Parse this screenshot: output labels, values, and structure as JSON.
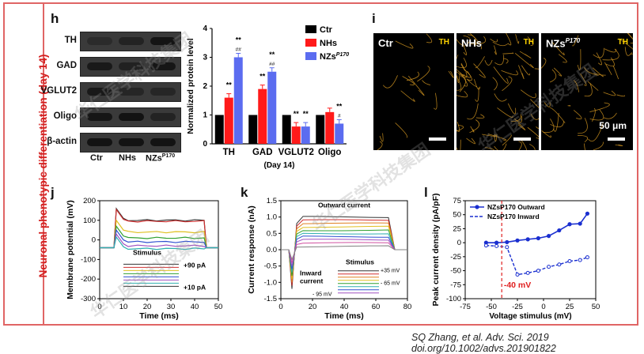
{
  "sidebar_label": "Neuronal phenotypic differentiation (day 14)",
  "citation": "SQ Zhang, et al. Adv. Sci. 2019 doi.org/10.1002/advs.201901822",
  "watermark_text": "华仁医学科技集团",
  "panel_h": {
    "letter": "h",
    "blot_rows": [
      "TH",
      "GAD",
      "VGLUT2",
      "Oligo",
      "β-actin"
    ],
    "lanes": [
      "Ctr",
      "NHs",
      "NZs"
    ],
    "lane_superscript": "P170",
    "chart_data": {
      "type": "bar",
      "categories": [
        "TH",
        "GAD",
        "VGLUT2",
        "Oligo"
      ],
      "ylabel": "Normalized protein level",
      "xlabel": "(Day 14)",
      "ylim": [
        0,
        4
      ],
      "yticks": [
        0,
        1,
        2,
        3,
        4
      ],
      "legend": [
        "Ctr",
        "NHs",
        "NZsP170"
      ],
      "legend_placement": "top-right",
      "colors": {
        "Ctr": "#000000",
        "NHs": "#ff1a1a",
        "NZs": "#5b6cf0"
      },
      "series": [
        {
          "name": "Ctr",
          "values": [
            1.0,
            1.0,
            1.0,
            1.0
          ]
        },
        {
          "name": "NHs",
          "values": [
            1.6,
            1.9,
            0.6,
            1.1
          ]
        },
        {
          "name": "NZsP170",
          "values": [
            3.0,
            2.5,
            0.6,
            0.7
          ]
        }
      ],
      "annotations": [
        {
          "cat": 0,
          "s": 1,
          "text": "**"
        },
        {
          "cat": 0,
          "s": 2,
          "text": "**",
          "sub": "##"
        },
        {
          "cat": 1,
          "s": 1,
          "text": "**"
        },
        {
          "cat": 1,
          "s": 2,
          "text": "**",
          "sub": "##"
        },
        {
          "cat": 2,
          "s": 1,
          "text": "**"
        },
        {
          "cat": 2,
          "s": 2,
          "text": "**"
        },
        {
          "cat": 3,
          "s": 2,
          "text": "**",
          "sub": "#"
        }
      ]
    }
  },
  "panel_i": {
    "letter": "i",
    "titles": [
      "Ctr",
      "NHs",
      "NZs"
    ],
    "title_superscript": "P170",
    "channel": "TH",
    "scale_label": "50 μm"
  },
  "panel_j": {
    "letter": "j",
    "chart_data": {
      "type": "line",
      "xlabel": "Time (ms)",
      "ylabel": "Membrane potential (mV)",
      "xlim": [
        0,
        50
      ],
      "ylim": [
        -300,
        200
      ],
      "xticks": [
        0,
        10,
        20,
        30,
        40,
        50
      ],
      "yticks": [
        -300,
        -200,
        -100,
        0,
        100,
        200
      ],
      "colors": [
        "#333333",
        "#d03030",
        "#e0c020",
        "#30a030",
        "#3050d0",
        "#a050c0",
        "#30b0b0"
      ],
      "inset_title": "Stimulus",
      "inset_top": "+90 pA",
      "inset_bottom": "+10 pA"
    }
  },
  "panel_k": {
    "letter": "k",
    "chart_data": {
      "type": "line",
      "xlabel": "Time (ms)",
      "ylabel": "Current response (nA)",
      "xlim": [
        0,
        80
      ],
      "ylim": [
        -1.5,
        1.5
      ],
      "xticks": [
        0,
        20,
        40,
        60,
        80
      ],
      "yticks": [
        -1.5,
        -1.0,
        -0.5,
        0.0,
        0.5,
        1.0,
        1.5
      ],
      "colors": [
        "#333333",
        "#d03030",
        "#e08020",
        "#e0c020",
        "#30a030",
        "#30b0b0",
        "#3050d0",
        "#a050c0",
        "#d050a0",
        "#808080"
      ],
      "label_outward": "Outward current",
      "label_inward": "Inward current",
      "inset_title": "Stimulus",
      "inset_top": "+35 mV",
      "inset_mid": "- 65 mV",
      "inset_bottom": "- 95 mV"
    }
  },
  "panel_l": {
    "letter": "l",
    "chart_data": {
      "type": "line",
      "xlabel": "Voltage stimulus (mV)",
      "ylabel": "Peak current density (pA/pF)",
      "xlim": [
        -75,
        50
      ],
      "ylim": [
        -100,
        75
      ],
      "xticks": [
        -75,
        -50,
        -25,
        0,
        25,
        50
      ],
      "yticks": [
        -100,
        -75,
        -50,
        -25,
        0,
        25,
        50,
        75
      ],
      "series": [
        {
          "name": "NZsP170 Outward",
          "x": [
            -55,
            -45,
            -35,
            -25,
            -15,
            -5,
            5,
            15,
            25,
            35,
            42
          ],
          "y": [
            0,
            0,
            1,
            4,
            6,
            8,
            12,
            22,
            33,
            34,
            52
          ]
        },
        {
          "name": "NZsP170 Inward",
          "x": [
            -55,
            -45,
            -35,
            -25,
            -15,
            -5,
            5,
            15,
            25,
            35,
            42
          ],
          "y": [
            -5,
            -6,
            -8,
            -57,
            -54,
            -50,
            -43,
            -39,
            -33,
            -31,
            -26
          ]
        }
      ],
      "legend": [
        "NZsP170 Outward",
        "NZsP170 Inward"
      ],
      "annotation": "-40 mV",
      "colors": {
        "outward": "#1a2fd0",
        "inward": "#1a2fd0",
        "marker": "#e02020"
      }
    }
  }
}
